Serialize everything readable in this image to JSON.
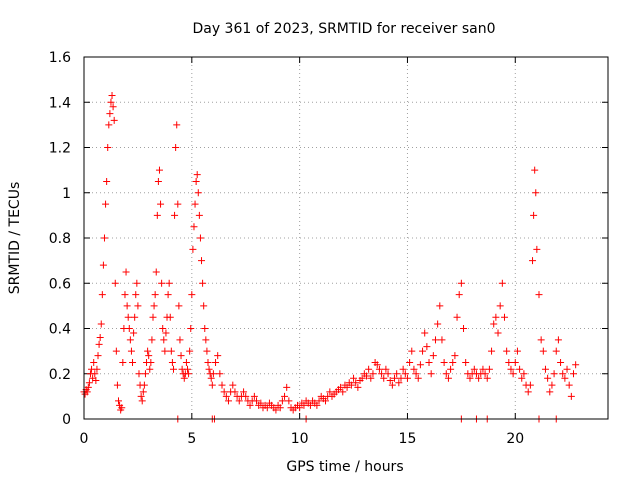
{
  "chart_data": {
    "type": "scatter",
    "title": "Day 361 of 2023, SRMTID for receiver san0",
    "xlabel": "GPS time / hours",
    "ylabel": "SRMTID / TECUs",
    "xlim": [
      0,
      24.3
    ],
    "ylim": [
      0,
      1.6
    ],
    "xticks": [
      0,
      5,
      10,
      15,
      20
    ],
    "xtick_labels": [
      "0",
      "5",
      "10",
      "15",
      "20"
    ],
    "yticks": [
      0,
      0.2,
      0.4,
      0.6,
      0.8,
      1,
      1.2,
      1.4,
      1.6
    ],
    "ytick_labels": [
      "0",
      "0.2",
      "0.4",
      "0.6",
      "0.8",
      "1",
      "1.2",
      "1.4",
      "1.6"
    ],
    "grid": true,
    "marker": "+",
    "series": [
      {
        "name": "SRMTID",
        "color": "#ff0000",
        "points": [
          [
            0.0,
            0.12
          ],
          [
            0.05,
            0.11
          ],
          [
            0.1,
            0.13
          ],
          [
            0.15,
            0.12
          ],
          [
            0.2,
            0.14
          ],
          [
            0.25,
            0.16
          ],
          [
            0.3,
            0.2
          ],
          [
            0.35,
            0.22
          ],
          [
            0.4,
            0.18
          ],
          [
            0.45,
            0.25
          ],
          [
            0.5,
            0.2
          ],
          [
            0.55,
            0.17
          ],
          [
            0.6,
            0.22
          ],
          [
            0.65,
            0.28
          ],
          [
            0.7,
            0.33
          ],
          [
            0.75,
            0.36
          ],
          [
            0.8,
            0.42
          ],
          [
            0.85,
            0.55
          ],
          [
            0.9,
            0.68
          ],
          [
            0.95,
            0.8
          ],
          [
            1.0,
            0.95
          ],
          [
            1.05,
            1.05
          ],
          [
            1.1,
            1.2
          ],
          [
            1.15,
            1.3
          ],
          [
            1.2,
            1.35
          ],
          [
            1.25,
            1.4
          ],
          [
            1.3,
            1.43
          ],
          [
            1.35,
            1.38
          ],
          [
            1.4,
            1.32
          ],
          [
            1.45,
            0.6
          ],
          [
            1.5,
            0.3
          ],
          [
            1.55,
            0.15
          ],
          [
            1.6,
            0.08
          ],
          [
            1.65,
            0.06
          ],
          [
            1.7,
            0.04
          ],
          [
            1.75,
            0.05
          ],
          [
            1.8,
            0.25
          ],
          [
            1.85,
            0.4
          ],
          [
            1.9,
            0.55
          ],
          [
            1.95,
            0.65
          ],
          [
            2.0,
            0.5
          ],
          [
            2.05,
            0.45
          ],
          [
            2.1,
            0.4
          ],
          [
            2.15,
            0.35
          ],
          [
            2.2,
            0.3
          ],
          [
            2.25,
            0.25
          ],
          [
            2.3,
            0.38
          ],
          [
            2.35,
            0.45
          ],
          [
            2.4,
            0.55
          ],
          [
            2.45,
            0.6
          ],
          [
            2.5,
            0.5
          ],
          [
            2.55,
            0.2
          ],
          [
            2.6,
            0.15
          ],
          [
            2.65,
            0.1
          ],
          [
            2.7,
            0.08
          ],
          [
            2.75,
            0.12
          ],
          [
            2.8,
            0.15
          ],
          [
            2.85,
            0.2
          ],
          [
            2.9,
            0.25
          ],
          [
            2.95,
            0.3
          ],
          [
            3.0,
            0.28
          ],
          [
            3.05,
            0.22
          ],
          [
            3.1,
            0.25
          ],
          [
            3.15,
            0.35
          ],
          [
            3.2,
            0.45
          ],
          [
            3.25,
            0.5
          ],
          [
            3.3,
            0.55
          ],
          [
            3.35,
            0.65
          ],
          [
            3.4,
            0.9
          ],
          [
            3.45,
            1.05
          ],
          [
            3.5,
            1.1
          ],
          [
            3.55,
            0.95
          ],
          [
            3.6,
            0.6
          ],
          [
            3.65,
            0.4
          ],
          [
            3.7,
            0.35
          ],
          [
            3.75,
            0.3
          ],
          [
            3.8,
            0.38
          ],
          [
            3.85,
            0.45
          ],
          [
            3.9,
            0.55
          ],
          [
            3.95,
            0.6
          ],
          [
            4.0,
            0.45
          ],
          [
            4.05,
            0.3
          ],
          [
            4.1,
            0.25
          ],
          [
            4.15,
            0.22
          ],
          [
            4.2,
            0.9
          ],
          [
            4.25,
            1.2
          ],
          [
            4.3,
            1.3
          ],
          [
            4.35,
            0.95
          ],
          [
            4.4,
            0.5
          ],
          [
            4.45,
            0.35
          ],
          [
            4.5,
            0.28
          ],
          [
            4.55,
            0.22
          ],
          [
            4.6,
            0.2
          ],
          [
            4.65,
            0.18
          ],
          [
            4.7,
            0.2
          ],
          [
            4.75,
            0.25
          ],
          [
            4.8,
            0.22
          ],
          [
            4.85,
            0.2
          ],
          [
            4.9,
            0.3
          ],
          [
            4.95,
            0.4
          ],
          [
            5.0,
            0.55
          ],
          [
            5.05,
            0.75
          ],
          [
            5.1,
            0.85
          ],
          [
            5.15,
            0.95
          ],
          [
            5.2,
            1.05
          ],
          [
            5.25,
            1.08
          ],
          [
            5.3,
            1.0
          ],
          [
            5.35,
            0.9
          ],
          [
            5.4,
            0.8
          ],
          [
            5.45,
            0.7
          ],
          [
            5.5,
            0.6
          ],
          [
            5.55,
            0.5
          ],
          [
            5.6,
            0.4
          ],
          [
            5.65,
            0.35
          ],
          [
            5.7,
            0.3
          ],
          [
            5.75,
            0.25
          ],
          [
            5.8,
            0.22
          ],
          [
            5.85,
            0.2
          ],
          [
            5.9,
            0.18
          ],
          [
            5.95,
            0.15
          ],
          [
            6.0,
            0.2
          ],
          [
            6.1,
            0.25
          ],
          [
            6.2,
            0.28
          ],
          [
            6.3,
            0.2
          ],
          [
            6.4,
            0.15
          ],
          [
            6.5,
            0.12
          ],
          [
            6.6,
            0.1
          ],
          [
            6.7,
            0.08
          ],
          [
            6.8,
            0.12
          ],
          [
            6.9,
            0.15
          ],
          [
            7.0,
            0.12
          ],
          [
            7.1,
            0.1
          ],
          [
            7.2,
            0.08
          ],
          [
            7.3,
            0.1
          ],
          [
            7.4,
            0.12
          ],
          [
            7.5,
            0.1
          ],
          [
            7.6,
            0.08
          ],
          [
            7.7,
            0.06
          ],
          [
            7.8,
            0.08
          ],
          [
            7.9,
            0.1
          ],
          [
            8.0,
            0.08
          ],
          [
            8.1,
            0.06
          ],
          [
            8.2,
            0.07
          ],
          [
            8.3,
            0.05
          ],
          [
            8.4,
            0.06
          ],
          [
            8.5,
            0.05
          ],
          [
            8.6,
            0.07
          ],
          [
            8.7,
            0.06
          ],
          [
            8.8,
            0.05
          ],
          [
            8.9,
            0.04
          ],
          [
            9.0,
            0.06
          ],
          [
            9.1,
            0.05
          ],
          [
            9.2,
            0.08
          ],
          [
            9.3,
            0.1
          ],
          [
            9.4,
            0.14
          ],
          [
            9.5,
            0.08
          ],
          [
            9.6,
            0.05
          ],
          [
            9.7,
            0.04
          ],
          [
            9.8,
            0.05
          ],
          [
            9.9,
            0.06
          ],
          [
            10.0,
            0.05
          ],
          [
            10.1,
            0.07
          ],
          [
            10.2,
            0.06
          ],
          [
            10.3,
            0.08
          ],
          [
            10.4,
            0.07
          ],
          [
            10.5,
            0.06
          ],
          [
            10.6,
            0.08
          ],
          [
            10.7,
            0.07
          ],
          [
            10.8,
            0.06
          ],
          [
            10.9,
            0.08
          ],
          [
            11.0,
            0.1
          ],
          [
            11.1,
            0.09
          ],
          [
            11.2,
            0.08
          ],
          [
            11.3,
            0.1
          ],
          [
            11.4,
            0.12
          ],
          [
            11.5,
            0.1
          ],
          [
            11.6,
            0.11
          ],
          [
            11.7,
            0.12
          ],
          [
            11.8,
            0.13
          ],
          [
            11.9,
            0.14
          ],
          [
            12.0,
            0.12
          ],
          [
            12.1,
            0.15
          ],
          [
            12.2,
            0.14
          ],
          [
            12.3,
            0.16
          ],
          [
            12.4,
            0.15
          ],
          [
            12.5,
            0.18
          ],
          [
            12.6,
            0.16
          ],
          [
            12.7,
            0.14
          ],
          [
            12.8,
            0.17
          ],
          [
            12.9,
            0.18
          ],
          [
            13.0,
            0.2
          ],
          [
            13.1,
            0.19
          ],
          [
            13.2,
            0.22
          ],
          [
            13.3,
            0.18
          ],
          [
            13.4,
            0.2
          ],
          [
            13.5,
            0.25
          ],
          [
            13.6,
            0.24
          ],
          [
            13.7,
            0.22
          ],
          [
            13.8,
            0.2
          ],
          [
            13.9,
            0.18
          ],
          [
            14.0,
            0.22
          ],
          [
            14.1,
            0.2
          ],
          [
            14.2,
            0.17
          ],
          [
            14.3,
            0.15
          ],
          [
            14.4,
            0.18
          ],
          [
            14.5,
            0.2
          ],
          [
            14.6,
            0.16
          ],
          [
            14.7,
            0.18
          ],
          [
            14.8,
            0.22
          ],
          [
            14.9,
            0.2
          ],
          [
            15.0,
            0.18
          ],
          [
            15.1,
            0.25
          ],
          [
            15.2,
            0.3
          ],
          [
            15.3,
            0.22
          ],
          [
            15.4,
            0.2
          ],
          [
            15.5,
            0.18
          ],
          [
            15.6,
            0.24
          ],
          [
            15.7,
            0.3
          ],
          [
            15.8,
            0.38
          ],
          [
            15.9,
            0.32
          ],
          [
            16.0,
            0.25
          ],
          [
            16.1,
            0.2
          ],
          [
            16.2,
            0.28
          ],
          [
            16.3,
            0.35
          ],
          [
            16.4,
            0.42
          ],
          [
            16.5,
            0.5
          ],
          [
            16.6,
            0.35
          ],
          [
            16.7,
            0.25
          ],
          [
            16.8,
            0.2
          ],
          [
            16.9,
            0.18
          ],
          [
            17.0,
            0.22
          ],
          [
            17.1,
            0.25
          ],
          [
            17.2,
            0.28
          ],
          [
            17.3,
            0.45
          ],
          [
            17.4,
            0.55
          ],
          [
            17.5,
            0.6
          ],
          [
            17.6,
            0.4
          ],
          [
            17.7,
            0.25
          ],
          [
            17.8,
            0.2
          ],
          [
            17.9,
            0.18
          ],
          [
            18.0,
            0.2
          ],
          [
            18.1,
            0.22
          ],
          [
            18.2,
            0.2
          ],
          [
            18.3,
            0.18
          ],
          [
            18.4,
            0.2
          ],
          [
            18.5,
            0.22
          ],
          [
            18.6,
            0.2
          ],
          [
            18.7,
            0.18
          ],
          [
            18.8,
            0.22
          ],
          [
            18.9,
            0.3
          ],
          [
            19.0,
            0.42
          ],
          [
            19.1,
            0.45
          ],
          [
            19.2,
            0.38
          ],
          [
            19.3,
            0.5
          ],
          [
            19.4,
            0.6
          ],
          [
            19.5,
            0.45
          ],
          [
            19.6,
            0.3
          ],
          [
            19.7,
            0.25
          ],
          [
            19.8,
            0.22
          ],
          [
            19.9,
            0.2
          ],
          [
            20.0,
            0.25
          ],
          [
            20.1,
            0.3
          ],
          [
            20.2,
            0.22
          ],
          [
            20.3,
            0.18
          ],
          [
            20.4,
            0.2
          ],
          [
            20.5,
            0.15
          ],
          [
            20.6,
            0.12
          ],
          [
            20.7,
            0.15
          ],
          [
            20.8,
            0.7
          ],
          [
            20.85,
            0.9
          ],
          [
            20.9,
            1.1
          ],
          [
            20.95,
            1.0
          ],
          [
            21.0,
            0.75
          ],
          [
            21.1,
            0.55
          ],
          [
            21.2,
            0.35
          ],
          [
            21.3,
            0.3
          ],
          [
            21.4,
            0.22
          ],
          [
            21.5,
            0.18
          ],
          [
            21.6,
            0.12
          ],
          [
            21.7,
            0.15
          ],
          [
            21.8,
            0.2
          ],
          [
            21.9,
            0.3
          ],
          [
            22.0,
            0.35
          ],
          [
            22.1,
            0.25
          ],
          [
            22.2,
            0.2
          ],
          [
            22.3,
            0.18
          ],
          [
            22.4,
            0.22
          ],
          [
            22.5,
            0.15
          ],
          [
            22.6,
            0.1
          ],
          [
            22.7,
            0.2
          ],
          [
            22.8,
            0.24
          ],
          [
            4.35,
            0.0
          ],
          [
            5.95,
            0.0
          ],
          [
            6.05,
            0.0
          ],
          [
            10.3,
            0.0
          ],
          [
            17.5,
            0.0
          ],
          [
            18.2,
            0.0
          ],
          [
            18.7,
            0.0
          ],
          [
            21.1,
            0.0
          ],
          [
            21.9,
            0.0
          ]
        ]
      }
    ]
  }
}
